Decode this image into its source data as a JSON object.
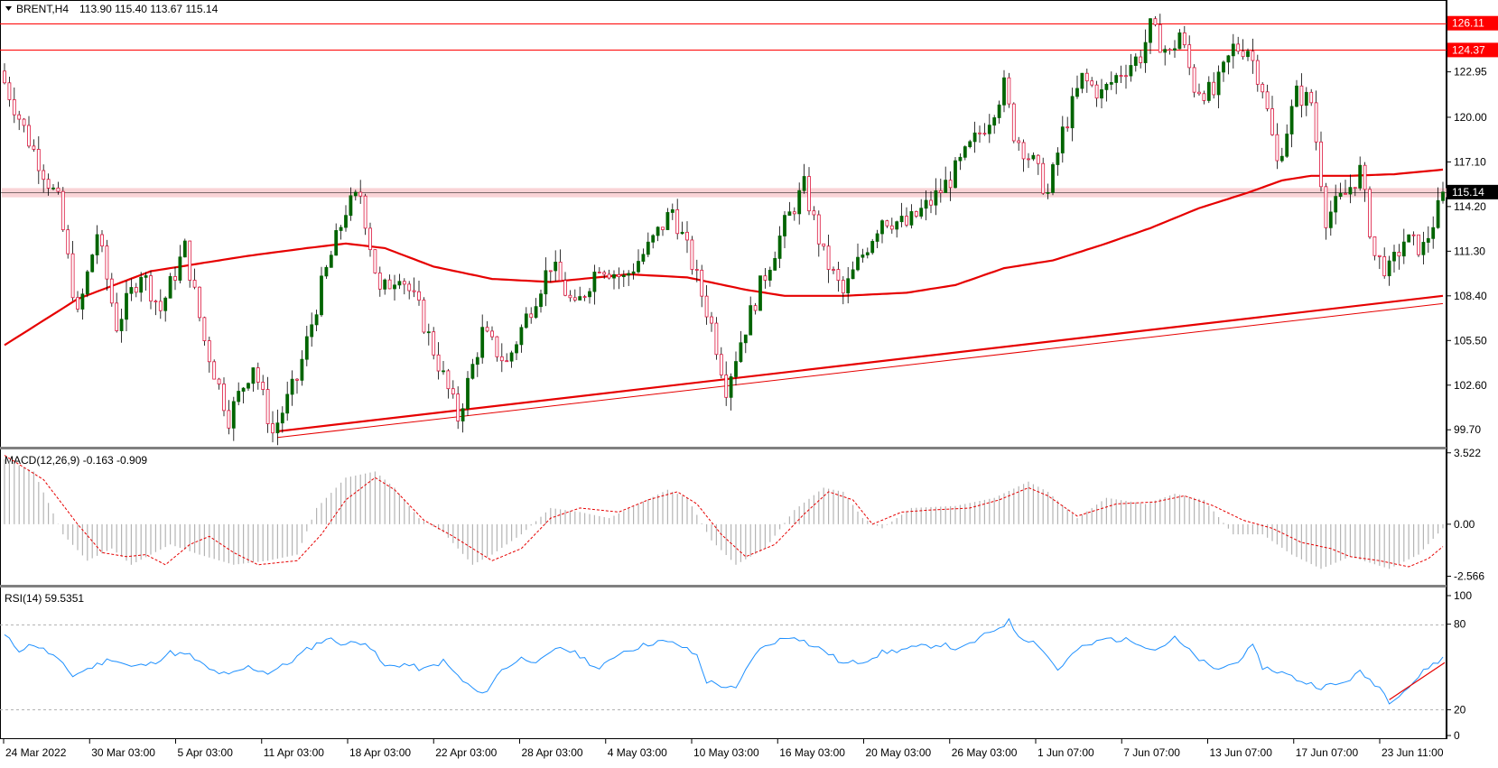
{
  "header": {
    "symbol_label": "BRENT,H4",
    "ohlc": "113.90 115.40 113.67 115.14"
  },
  "chart_data": [
    {
      "type": "candlestick",
      "name": "price",
      "y_ticks": [
        "99.70",
        "102.60",
        "105.50",
        "108.40",
        "111.30",
        "114.20",
        "117.10",
        "120.00",
        "122.95"
      ],
      "ylim": [
        98.6,
        127.5
      ],
      "x_tick_labels": [
        "24 Mar 2022",
        "30 Mar 03:00",
        "5 Apr 03:00",
        "11 Apr 03:00",
        "18 Apr 03:00",
        "22 Apr 03:00",
        "28 Apr 03:00",
        "4 May 03:00",
        "10 May 03:00",
        "16 May 03:00",
        "20 May 03:00",
        "26 May 03:00",
        "1 Jun 07:00",
        "7 Jun 07:00",
        "13 Jun 07:00",
        "17 Jun 07:00",
        "23 Jun 11:00"
      ],
      "price_anchors": [
        [
          0,
          123.0
        ],
        [
          6,
          118.5
        ],
        [
          12,
          114.5
        ],
        [
          16,
          107.0
        ],
        [
          20,
          112.5
        ],
        [
          24,
          106.5
        ],
        [
          29,
          110.0
        ],
        [
          33,
          107.5
        ],
        [
          38,
          111.5
        ],
        [
          42,
          105.5
        ],
        [
          47,
          100.5
        ],
        [
          52,
          104.0
        ],
        [
          56,
          99.5
        ],
        [
          61,
          103.0
        ],
        [
          66,
          109.0
        ],
        [
          71,
          114.0
        ],
        [
          74,
          115.0
        ],
        [
          78,
          108.5
        ],
        [
          82,
          110.0
        ],
        [
          86,
          107.5
        ],
        [
          90,
          104.0
        ],
        [
          94,
          100.5
        ],
        [
          99,
          106.0
        ],
        [
          104,
          104.0
        ],
        [
          108,
          107.0
        ],
        [
          113,
          110.5
        ],
        [
          118,
          107.5
        ],
        [
          123,
          110.5
        ],
        [
          128,
          109.5
        ],
        [
          133,
          111.5
        ],
        [
          138,
          114.0
        ],
        [
          142,
          110.5
        ],
        [
          146,
          106.5
        ],
        [
          149,
          102.5
        ],
        [
          152,
          105.5
        ],
        [
          156,
          109.0
        ],
        [
          161,
          113.0
        ],
        [
          165,
          115.5
        ],
        [
          169,
          111.0
        ],
        [
          173,
          108.5
        ],
        [
          176,
          110.5
        ],
        [
          181,
          113.5
        ],
        [
          186,
          113.0
        ],
        [
          191,
          114.5
        ],
        [
          195,
          116.0
        ],
        [
          199,
          118.0
        ],
        [
          203,
          120.0
        ],
        [
          206,
          122.0
        ],
        [
          208,
          119.0
        ],
        [
          212,
          117.0
        ],
        [
          215,
          115.0
        ],
        [
          218,
          119.0
        ],
        [
          222,
          122.5
        ],
        [
          226,
          121.5
        ],
        [
          230,
          123.0
        ],
        [
          234,
          124.0
        ],
        [
          236,
          125.8
        ],
        [
          240,
          124.0
        ],
        [
          242,
          125.5
        ],
        [
          245,
          122.0
        ],
        [
          249,
          121.5
        ],
        [
          253,
          124.5
        ],
        [
          256,
          124.5
        ],
        [
          259,
          122.0
        ],
        [
          262,
          117.0
        ],
        [
          266,
          121.5
        ],
        [
          269,
          121.0
        ],
        [
          272,
          113.5
        ],
        [
          276,
          115.0
        ],
        [
          279,
          116.5
        ],
        [
          282,
          111.0
        ],
        [
          285,
          110.0
        ],
        [
          288,
          112.0
        ],
        [
          292,
          111.5
        ],
        [
          295,
          114.0
        ]
      ],
      "last_price": 115.14,
      "horizontal_levels": [
        {
          "value": 126.11,
          "label": "126.11",
          "color": "#ff0000"
        },
        {
          "value": 124.37,
          "label": "124.37",
          "color": "#ff0000"
        },
        {
          "value": 115.14,
          "label": "115.14",
          "color": "#000000",
          "style": "bid-line"
        }
      ],
      "support_zone": [
        114.8,
        115.4
      ],
      "moving_average_anchors": [
        [
          0,
          105.2
        ],
        [
          15,
          108.2
        ],
        [
          30,
          110.0
        ],
        [
          50,
          111.0
        ],
        [
          62,
          111.5
        ],
        [
          70,
          111.8
        ],
        [
          78,
          111.5
        ],
        [
          88,
          110.3
        ],
        [
          100,
          109.5
        ],
        [
          112,
          109.3
        ],
        [
          128,
          109.8
        ],
        [
          140,
          109.6
        ],
        [
          152,
          108.8
        ],
        [
          160,
          108.4
        ],
        [
          172,
          108.4
        ],
        [
          185,
          108.6
        ],
        [
          195,
          109.1
        ],
        [
          205,
          110.2
        ],
        [
          215,
          110.7
        ],
        [
          225,
          111.7
        ],
        [
          235,
          112.8
        ],
        [
          245,
          114.1
        ],
        [
          255,
          115.1
        ],
        [
          262,
          115.9
        ],
        [
          268,
          116.2
        ],
        [
          276,
          116.2
        ],
        [
          285,
          116.3
        ],
        [
          295,
          116.6
        ]
      ],
      "trendlines": [
        {
          "from": [
            56,
            99.6
          ],
          "to": [
            295,
            108.4
          ]
        },
        {
          "from": [
            56,
            99.2
          ],
          "to": [
            295,
            107.9
          ]
        }
      ],
      "bar_count": 296
    },
    {
      "type": "histogram",
      "name": "macd",
      "title": "MACD(12,26,9) -0.163 -0.909",
      "y_ticks": [
        "3.522",
        "0.00",
        "-2.566"
      ],
      "ylim": [
        -2.9,
        3.6
      ],
      "histogram_anchors": [
        [
          0,
          3.2
        ],
        [
          6,
          2.6
        ],
        [
          12,
          -0.5
        ],
        [
          17,
          -1.8
        ],
        [
          22,
          -1.2
        ],
        [
          26,
          -2.0
        ],
        [
          34,
          -1.0
        ],
        [
          40,
          -1.5
        ],
        [
          47,
          -2.0
        ],
        [
          54,
          -1.8
        ],
        [
          60,
          -1.5
        ],
        [
          64,
          0.8
        ],
        [
          70,
          2.3
        ],
        [
          76,
          2.6
        ],
        [
          80,
          1.8
        ],
        [
          85,
          0.3
        ],
        [
          90,
          -0.4
        ],
        [
          96,
          -2.0
        ],
        [
          100,
          -1.5
        ],
        [
          106,
          -0.5
        ],
        [
          112,
          0.8
        ],
        [
          118,
          0.6
        ],
        [
          124,
          0.3
        ],
        [
          130,
          1.0
        ],
        [
          136,
          1.7
        ],
        [
          140,
          1.3
        ],
        [
          145,
          -0.8
        ],
        [
          150,
          -2.0
        ],
        [
          156,
          -1.2
        ],
        [
          162,
          0.7
        ],
        [
          168,
          1.8
        ],
        [
          172,
          1.6
        ],
        [
          176,
          0.3
        ],
        [
          180,
          -0.2
        ],
        [
          186,
          0.8
        ],
        [
          195,
          0.9
        ],
        [
          203,
          1.3
        ],
        [
          210,
          2.1
        ],
        [
          214,
          1.6
        ],
        [
          220,
          0.3
        ],
        [
          226,
          1.3
        ],
        [
          234,
          1.0
        ],
        [
          240,
          1.5
        ],
        [
          246,
          1.2
        ],
        [
          252,
          -0.5
        ],
        [
          258,
          -0.5
        ],
        [
          264,
          -1.5
        ],
        [
          270,
          -2.2
        ],
        [
          276,
          -1.6
        ],
        [
          284,
          -2.2
        ],
        [
          290,
          -1.5
        ],
        [
          295,
          -0.2
        ]
      ],
      "signal_anchors": [
        [
          0,
          3.4
        ],
        [
          8,
          2.2
        ],
        [
          15,
          0.0
        ],
        [
          20,
          -1.4
        ],
        [
          25,
          -1.6
        ],
        [
          29,
          -1.5
        ],
        [
          33,
          -2.0
        ],
        [
          38,
          -1.0
        ],
        [
          42,
          -0.6
        ],
        [
          47,
          -1.4
        ],
        [
          52,
          -2.0
        ],
        [
          60,
          -1.8
        ],
        [
          65,
          -0.5
        ],
        [
          70,
          1.2
        ],
        [
          76,
          2.3
        ],
        [
          80,
          1.7
        ],
        [
          86,
          0.2
        ],
        [
          92,
          -0.6
        ],
        [
          100,
          -1.8
        ],
        [
          106,
          -1.2
        ],
        [
          112,
          0.3
        ],
        [
          118,
          0.8
        ],
        [
          126,
          0.6
        ],
        [
          132,
          1.2
        ],
        [
          138,
          1.6
        ],
        [
          142,
          1.0
        ],
        [
          147,
          -0.5
        ],
        [
          152,
          -1.6
        ],
        [
          158,
          -1.0
        ],
        [
          164,
          0.5
        ],
        [
          169,
          1.6
        ],
        [
          174,
          1.2
        ],
        [
          178,
          0.0
        ],
        [
          184,
          0.6
        ],
        [
          190,
          0.7
        ],
        [
          198,
          0.8
        ],
        [
          204,
          1.2
        ],
        [
          210,
          1.8
        ],
        [
          214,
          1.4
        ],
        [
          220,
          0.4
        ],
        [
          228,
          1.0
        ],
        [
          236,
          1.1
        ],
        [
          242,
          1.4
        ],
        [
          248,
          0.9
        ],
        [
          254,
          0.2
        ],
        [
          260,
          -0.2
        ],
        [
          266,
          -0.9
        ],
        [
          272,
          -1.2
        ],
        [
          276,
          -1.6
        ],
        [
          282,
          -1.8
        ],
        [
          288,
          -2.1
        ],
        [
          292,
          -1.7
        ],
        [
          295,
          -1.1
        ]
      ]
    },
    {
      "type": "line",
      "name": "rsi",
      "title": "RSI(14) 59.5351",
      "y_ticks": [
        "100",
        "80",
        "20",
        "0"
      ],
      "ylim": [
        0,
        100
      ],
      "levels": [
        80,
        20
      ],
      "rsi_anchors": [
        [
          0,
          72
        ],
        [
          3,
          62
        ],
        [
          6,
          66
        ],
        [
          10,
          58
        ],
        [
          14,
          44
        ],
        [
          18,
          50
        ],
        [
          22,
          56
        ],
        [
          26,
          50
        ],
        [
          30,
          52
        ],
        [
          34,
          60
        ],
        [
          38,
          58
        ],
        [
          42,
          48
        ],
        [
          46,
          44
        ],
        [
          50,
          50
        ],
        [
          54,
          46
        ],
        [
          58,
          52
        ],
        [
          62,
          62
        ],
        [
          66,
          70
        ],
        [
          70,
          66
        ],
        [
          74,
          68
        ],
        [
          78,
          50
        ],
        [
          82,
          52
        ],
        [
          86,
          48
        ],
        [
          90,
          54
        ],
        [
          94,
          40
        ],
        [
          98,
          30
        ],
        [
          102,
          48
        ],
        [
          106,
          56
        ],
        [
          110,
          54
        ],
        [
          114,
          64
        ],
        [
          118,
          58
        ],
        [
          122,
          48
        ],
        [
          126,
          60
        ],
        [
          130,
          64
        ],
        [
          134,
          68
        ],
        [
          138,
          66
        ],
        [
          142,
          58
        ],
        [
          144,
          40
        ],
        [
          148,
          36
        ],
        [
          150,
          34
        ],
        [
          154,
          60
        ],
        [
          158,
          68
        ],
        [
          162,
          72
        ],
        [
          166,
          64
        ],
        [
          168,
          62
        ],
        [
          172,
          52
        ],
        [
          176,
          54
        ],
        [
          180,
          60
        ],
        [
          184,
          62
        ],
        [
          188,
          64
        ],
        [
          192,
          66
        ],
        [
          196,
          62
        ],
        [
          200,
          70
        ],
        [
          206,
          82
        ],
        [
          208,
          72
        ],
        [
          212,
          66
        ],
        [
          216,
          48
        ],
        [
          220,
          62
        ],
        [
          226,
          70
        ],
        [
          232,
          68
        ],
        [
          236,
          62
        ],
        [
          240,
          70
        ],
        [
          244,
          58
        ],
        [
          248,
          48
        ],
        [
          252,
          52
        ],
        [
          256,
          64
        ],
        [
          258,
          50
        ],
        [
          262,
          46
        ],
        [
          266,
          40
        ],
        [
          270,
          36
        ],
        [
          274,
          38
        ],
        [
          278,
          46
        ],
        [
          282,
          36
        ],
        [
          284,
          26
        ],
        [
          288,
          36
        ],
        [
          292,
          50
        ],
        [
          295,
          56
        ]
      ],
      "trendline": {
        "from": [
          284,
          27
        ],
        "to": [
          300,
          53
        ]
      }
    }
  ],
  "time_axis": {
    "visible_range": "bottom time scale"
  }
}
